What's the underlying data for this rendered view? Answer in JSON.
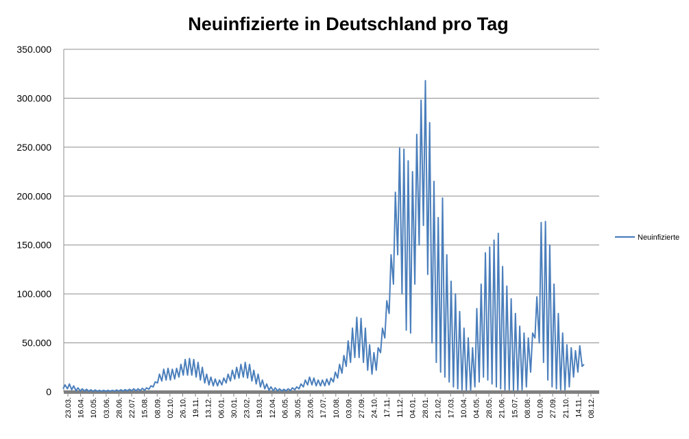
{
  "chart_data": {
    "type": "line",
    "title": "Neuinfizierte in Deutschland pro Tag",
    "xlabel": "",
    "ylabel": "",
    "ylim": [
      0,
      350000
    ],
    "yticks": [
      0,
      50000,
      100000,
      150000,
      200000,
      250000,
      300000,
      350000
    ],
    "ytick_labels": [
      "0",
      "50.000",
      "100.000",
      "150.000",
      "200.000",
      "250.000",
      "300.000",
      "350.000"
    ],
    "grid": true,
    "legend_position": "right",
    "color": "#4a7ebb",
    "x_tick_labels": [
      "23.03.",
      "16.04.",
      "10.05.",
      "03.06.",
      "28.06.",
      "22.07.",
      "15.08.",
      "08.09.",
      "02.10.",
      "26.10.",
      "19.11.",
      "13.12.",
      "06.01.",
      "30.01.",
      "23.02.",
      "19.03.",
      "12.04.",
      "06.05.",
      "30.05.",
      "23.06.",
      "17.07.",
      "10.08.",
      "03.09.",
      "27.09.",
      "24.10.",
      "17.11.",
      "11.12.",
      "04.01.",
      "28.01.",
      "21.02.",
      "17.03.",
      "10.04.",
      "04.05.",
      "28.05.",
      "21.06.",
      "15.07.",
      "08.08.",
      "01.09.",
      "27.09.",
      "21.10.",
      "14.11.",
      "08.12."
    ],
    "series": [
      {
        "name": "Neuinfizierte",
        "note_on_values": "weekly cycle; each entry is the weekly peak and weekly trough (values estimated from chart)",
        "weekly_high": [
          7000,
          8000,
          6000,
          4000,
          3000,
          2500,
          2000,
          1800,
          1500,
          1500,
          1500,
          1500,
          1800,
          2000,
          2200,
          2500,
          3000,
          3000,
          3500,
          4000,
          6000,
          10000,
          18000,
          23000,
          24000,
          23000,
          24000,
          28000,
          33000,
          34000,
          33000,
          30000,
          25000,
          18000,
          15000,
          13000,
          12000,
          14000,
          18000,
          22000,
          25000,
          28000,
          30000,
          28000,
          22000,
          18000,
          12000,
          8000,
          5000,
          4000,
          3000,
          2500,
          3000,
          4000,
          5000,
          8000,
          12000,
          15000,
          14000,
          12000,
          12000,
          13000,
          14000,
          20000,
          28000,
          37000,
          52000,
          65000,
          76000,
          75000,
          65000,
          48000,
          40000,
          45000,
          65000,
          93000,
          140000,
          204000,
          249000,
          248000,
          236000,
          225000,
          263000,
          298000,
          318000,
          275000,
          215000,
          178000,
          198000,
          140000,
          113000,
          100000,
          82000,
          65000,
          55000,
          45000,
          85000,
          110000,
          142000,
          148000,
          155000,
          162000,
          128000,
          108000,
          95000,
          80000,
          67000,
          60000,
          55000,
          60000,
          97000,
          173000,
          174000,
          150000,
          110000,
          80000,
          60000,
          48000,
          45000,
          42000,
          47000,
          28000
        ],
        "weekly_low": [
          3000,
          3000,
          2000,
          1000,
          800,
          700,
          500,
          500,
          500,
          500,
          500,
          500,
          600,
          700,
          800,
          900,
          1000,
          1000,
          1200,
          1500,
          2500,
          5000,
          9000,
          11000,
          12000,
          12000,
          13000,
          15000,
          17000,
          17000,
          17000,
          15000,
          12000,
          9000,
          7000,
          6000,
          6000,
          7000,
          9000,
          11000,
          13000,
          14000,
          15000,
          14000,
          11000,
          8000,
          5000,
          3000,
          1500,
          1000,
          800,
          700,
          900,
          1200,
          2000,
          3000,
          5000,
          7000,
          7000,
          6000,
          6000,
          6000,
          7000,
          10000,
          14000,
          19000,
          26000,
          30000,
          35000,
          35000,
          30000,
          22000,
          18000,
          22000,
          40000,
          55000,
          80000,
          110000,
          140000,
          100000,
          63000,
          60000,
          110000,
          150000,
          170000,
          120000,
          50000,
          30000,
          20000,
          15000,
          10000,
          5000,
          3000,
          2000,
          1500,
          1500,
          5000,
          10000,
          15000,
          12000,
          8000,
          5000,
          3000,
          2000,
          2000,
          1500,
          1500,
          2000,
          5000,
          20000,
          55000,
          50000,
          30000,
          12000,
          5000,
          3000,
          2000,
          2000,
          5000,
          15000,
          20000,
          26000
        ]
      }
    ]
  }
}
